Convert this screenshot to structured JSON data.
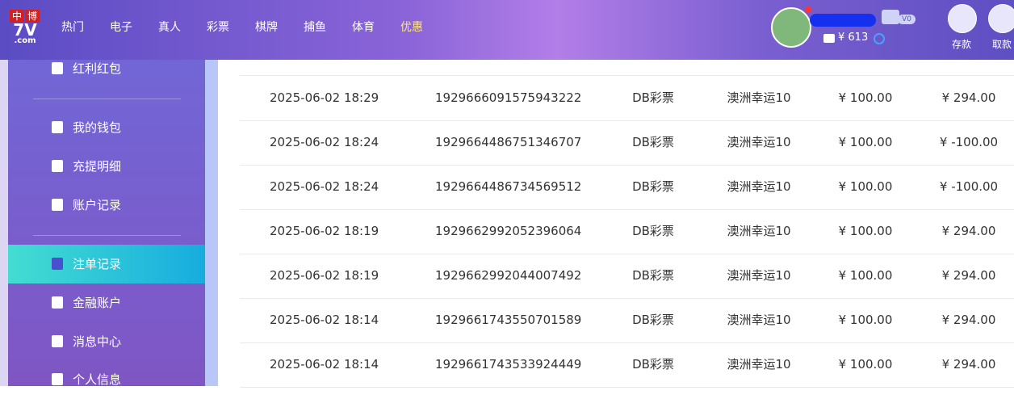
{
  "header": {
    "logo": {
      "top_left": "中",
      "top_right": "博",
      "brand": "7V",
      "domain": ".com"
    },
    "nav": [
      "热门",
      "电子",
      "真人",
      "彩票",
      "棋牌",
      "捕鱼",
      "体育",
      "优惠"
    ],
    "user": {
      "balance": "¥ 613",
      "vip": "V0"
    },
    "actions": [
      "存款",
      "取款"
    ]
  },
  "sidebar": {
    "items": [
      "红利红包",
      "我的钱包",
      "充提明细",
      "账户记录",
      "注单记录",
      "金融账户",
      "消息中心",
      "个人信息"
    ],
    "active": 4
  },
  "table": {
    "rows": [
      [
        "2025-06-02 18:29",
        "1929666091575943222",
        "DB彩票",
        "澳洲幸运10",
        "¥ 100.00",
        "¥ 294.00"
      ],
      [
        "2025-06-02 18:24",
        "1929664486751346707",
        "DB彩票",
        "澳洲幸运10",
        "¥ 100.00",
        "¥ -100.00"
      ],
      [
        "2025-06-02 18:24",
        "1929664486734569512",
        "DB彩票",
        "澳洲幸运10",
        "¥ 100.00",
        "¥ -100.00"
      ],
      [
        "2025-06-02 18:19",
        "1929662992052396064",
        "DB彩票",
        "澳洲幸运10",
        "¥ 100.00",
        "¥ 294.00"
      ],
      [
        "2025-06-02 18:19",
        "1929662992044007492",
        "DB彩票",
        "澳洲幸运10",
        "¥ 100.00",
        "¥ 294.00"
      ],
      [
        "2025-06-02 18:14",
        "1929661743550701589",
        "DB彩票",
        "澳洲幸运10",
        "¥ 100.00",
        "¥ 294.00"
      ],
      [
        "2025-06-02 18:14",
        "1929661743533924449",
        "DB彩票",
        "澳洲幸运10",
        "¥ 100.00",
        "¥ 294.00"
      ]
    ]
  }
}
